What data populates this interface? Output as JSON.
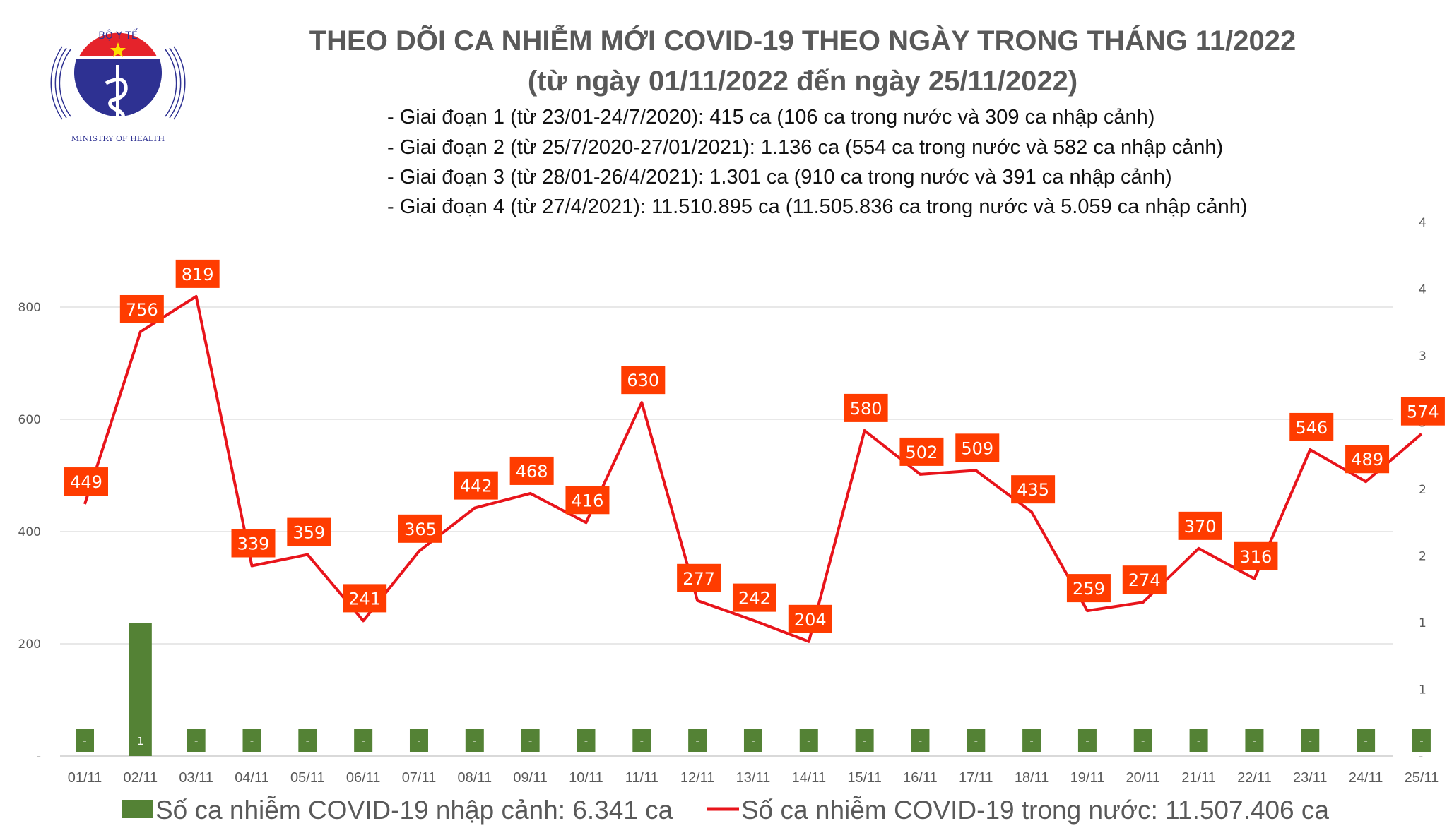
{
  "logo": {
    "top_text": "BỘ Y TẾ",
    "bottom_text": "MINISTRY OF HEALTH"
  },
  "header": {
    "title": "THEO DÕI CA NHIỄM MỚI COVID-19 THEO NGÀY TRONG THÁNG 11/2022",
    "subtitle": "(từ ngày 01/11/2022 đến ngày 25/11/2022)",
    "bullets": [
      "- Giai đoạn 1 (từ 23/01-24/7/2020): 415 ca (106 ca trong nước và 309 ca nhập cảnh)",
      "- Giai đoạn 2 (từ 25/7/2020-27/01/2021): 1.136 ca (554 ca trong nước và 582 ca nhập cảnh)",
      "- Giai đoạn 3 (từ 28/01-26/4/2021): 1.301 ca (910 ca trong nước và 391 ca nhập cảnh)",
      "- Giai đoạn 4 (từ 27/4/2021): 11.510.895 ca (11.505.836 ca trong nước và 5.059 ca nhập cảnh)"
    ]
  },
  "chart_data": {
    "type": "bar+line",
    "categories": [
      "01/11",
      "02/11",
      "03/11",
      "04/11",
      "05/11",
      "06/11",
      "07/11",
      "08/11",
      "09/11",
      "10/11",
      "11/11",
      "12/11",
      "13/11",
      "14/11",
      "15/11",
      "16/11",
      "17/11",
      "18/11",
      "19/11",
      "20/11",
      "21/11",
      "22/11",
      "23/11",
      "24/11",
      "25/11"
    ],
    "series": [
      {
        "name": "Số ca nhiễm COVID-19 nhập cảnh: 6.341 ca",
        "type": "bar",
        "axis": "right",
        "color": "#548235",
        "values": [
          0,
          1,
          0,
          0,
          0,
          0,
          0,
          0,
          0,
          0,
          0,
          0,
          0,
          0,
          0,
          0,
          0,
          0,
          0,
          0,
          0,
          0,
          0,
          0,
          0
        ]
      },
      {
        "name": "Số ca nhiễm COVID-19 trong nước: 11.507.406 ca",
        "type": "line",
        "axis": "left",
        "color": "#e8141b",
        "label_color": "#ff3c00",
        "values": [
          449,
          756,
          819,
          339,
          359,
          241,
          365,
          442,
          468,
          416,
          630,
          277,
          242,
          204,
          580,
          502,
          509,
          435,
          259,
          274,
          370,
          316,
          546,
          489,
          574
        ]
      }
    ],
    "y_left": {
      "ylim": [
        0,
        1050
      ],
      "ticks": [
        0,
        200,
        400,
        600,
        800
      ],
      "tick_labels": [
        "-",
        "200",
        "400",
        "600",
        "800"
      ]
    },
    "y_right": {
      "ylim": [
        0,
        4
      ],
      "ticks": [
        0,
        0.5,
        1,
        1.5,
        2,
        2.5,
        3,
        3.5,
        4
      ],
      "tick_labels": [
        "-",
        "1",
        "1",
        "2",
        "2",
        "3",
        "3",
        "4",
        "4"
      ]
    },
    "zero_label": "-",
    "grid": true,
    "legend": "bottom"
  }
}
